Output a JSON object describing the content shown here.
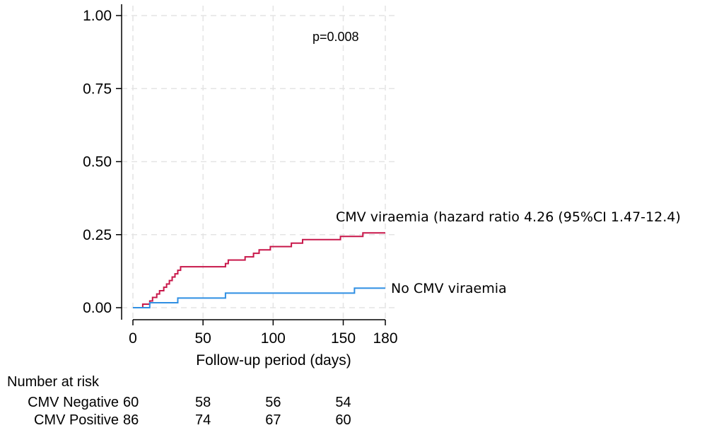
{
  "chart_data": {
    "type": "line",
    "subtype": "kaplan-meier-cumulative-incidence",
    "xlabel": "Follow-up period (days)",
    "ylabel": "",
    "xlim": [
      0,
      180
    ],
    "ylim": [
      0,
      1
    ],
    "x_ticks": [
      0,
      50,
      100,
      150,
      180
    ],
    "y_ticks": [
      0,
      0.25,
      0.5,
      0.75,
      1.0
    ],
    "y_tick_labels": [
      "0.00",
      "0.25",
      "0.50",
      "0.75",
      "1.00"
    ],
    "grid": true,
    "annotation": "p=0.008",
    "series": [
      {
        "name": "CMV viraemia (hazard ratio 4.26 (95%CI 1.47-12.4)",
        "color": "#c8174a",
        "x": [
          0,
          7,
          12,
          14,
          17,
          19,
          22,
          24,
          26,
          28,
          30,
          32,
          34,
          37,
          40,
          60,
          66,
          68,
          73,
          80,
          86,
          90,
          94,
          98,
          102,
          113,
          121,
          126,
          148,
          164,
          180
        ],
        "y": [
          0,
          0.012,
          0.023,
          0.035,
          0.047,
          0.058,
          0.07,
          0.081,
          0.093,
          0.105,
          0.116,
          0.128,
          0.14,
          0.14,
          0.14,
          0.14,
          0.151,
          0.163,
          0.163,
          0.174,
          0.186,
          0.198,
          0.198,
          0.209,
          0.209,
          0.221,
          0.233,
          0.233,
          0.244,
          0.256,
          0.256
        ]
      },
      {
        "name": "No CMV viraemia",
        "color": "#2f8fe3",
        "x": [
          0,
          12,
          15,
          32,
          66,
          158,
          180
        ],
        "y": [
          0,
          0.017,
          0.017,
          0.033,
          0.05,
          0.067,
          0.067
        ]
      }
    ],
    "risk_table": {
      "title": "Number at risk",
      "rows": [
        {
          "label": "CMV Negative",
          "values": [
            60,
            58,
            56,
            54
          ]
        },
        {
          "label": "CMV Positive",
          "values": [
            86,
            74,
            67,
            60
          ]
        }
      ]
    }
  }
}
